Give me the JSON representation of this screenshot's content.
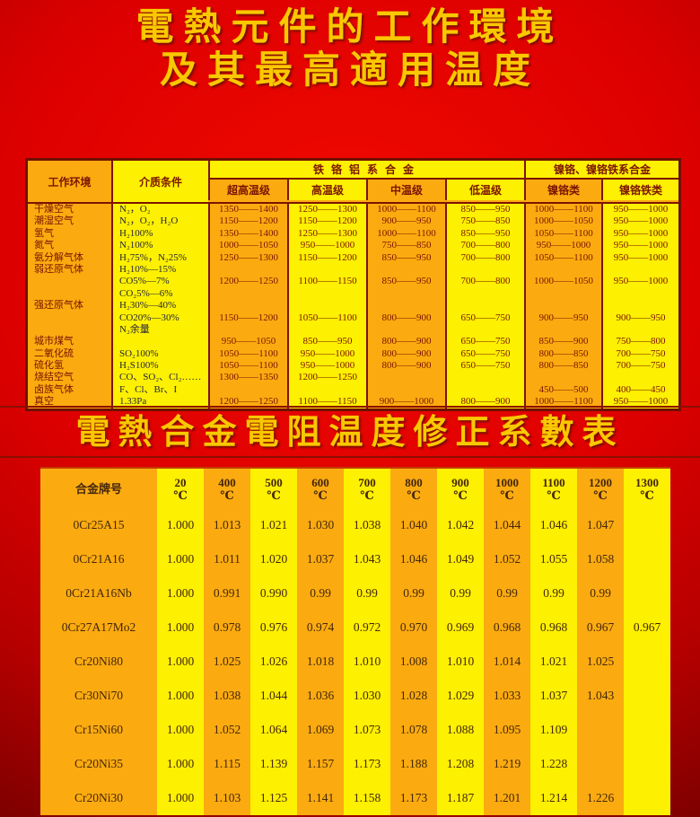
{
  "titles": {
    "main_line1": "電熱元件的工作環境",
    "main_line2": "及其最高適用温度",
    "second": "電熱合金電阻温度修正系數表"
  },
  "colors": {
    "page_red": "#dd0000",
    "cell_orange": "#fbab10",
    "cell_yellow": "#fdf000",
    "grid_line": "#7c1400",
    "title_gold": "#f9c800",
    "text_maroon": "#7b1400",
    "text_medium_dark": "#26263e"
  },
  "table1": {
    "header": {
      "col_env": "工作环境",
      "col_medium": "介质条件",
      "group_fecral": "铁铬铝系合金",
      "group_nicr": "镍铬、镍铬铁系合金",
      "sub_headers": [
        "超高温级",
        "高温级",
        "中温级",
        "低温级",
        "镍铬类",
        "镍铬铁类"
      ]
    },
    "lines": [
      {
        "env": "干燥空气",
        "medium": "N₂，O₂",
        "v": [
          "1350——1400",
          "1250——1300",
          "1000——1100",
          "850——950",
          "1000——1100",
          "950——1000"
        ]
      },
      {
        "env": "潮湿空气",
        "medium": "N₂，O₂，H₂O",
        "v": [
          "1150——1200",
          "1150——1200",
          "900——950",
          "750——850",
          "1000——1050",
          "950——1000"
        ]
      },
      {
        "env": "氢气",
        "medium": "H₂100%",
        "v": [
          "1350——1400",
          "1250——1300",
          "1000——1100",
          "850——950",
          "1050——1100",
          "950——1000"
        ]
      },
      {
        "env": "氮气",
        "medium": "N₂100%",
        "v": [
          "1000——1050",
          "950——1000",
          "750——850",
          "700——800",
          "950——1000",
          "950——1000"
        ]
      },
      {
        "env": "氨分解气体",
        "medium": "H₂75%，N₂25%",
        "v": [
          "1250——1300",
          "1150——1200",
          "850——950",
          "700——800",
          "1050——1100",
          "950——1000"
        ]
      },
      {
        "env": "弱还原气体",
        "medium": "H₂10%—15%",
        "v": [
          "",
          "",
          "",
          "",
          "",
          ""
        ]
      },
      {
        "env": "",
        "medium": "CO5%—7%",
        "v": [
          "1200——1250",
          "1100——1150",
          "850——950",
          "700——800",
          "1000——1050",
          "950——1000"
        ]
      },
      {
        "env": "",
        "medium": "CO₂5%—6%",
        "v": [
          "",
          "",
          "",
          "",
          "",
          ""
        ]
      },
      {
        "env": "强还原气体",
        "medium": "H₂30%—40%",
        "v": [
          "",
          "",
          "",
          "",
          "",
          ""
        ]
      },
      {
        "env": "",
        "medium": "CO20%—30%",
        "v": [
          "1150——1200",
          "1050——1100",
          "800——900",
          "650——750",
          "900——950",
          "900——950"
        ]
      },
      {
        "env": "",
        "medium": "N₂余量",
        "v": [
          "",
          "",
          "",
          "",
          "",
          ""
        ]
      },
      {
        "env": "城市煤气",
        "medium": "",
        "v": [
          "950——1050",
          "850——950",
          "800——900",
          "650——750",
          "850——900",
          "750——800"
        ]
      },
      {
        "env": "二氧化硫",
        "medium": "SO₂100%",
        "v": [
          "1050——1100",
          "950——1000",
          "800——900",
          "650——750",
          "800——850",
          "700——750"
        ]
      },
      {
        "env": "硫化氢",
        "medium": "H₂S100%",
        "v": [
          "1050——1100",
          "950——1000",
          "800——900",
          "650——750",
          "800——850",
          "700——750"
        ]
      },
      {
        "env": "烧结空气",
        "medium": "CO、SO₂、Cl₂……",
        "v": [
          "1300——1350",
          "1200——1250",
          "",
          "",
          "",
          ""
        ]
      },
      {
        "env": "卤族气体",
        "medium": "F、Cl、Br、I",
        "v": [
          "",
          "",
          "",
          "",
          "450——500",
          "400——450"
        ]
      },
      {
        "env": "真空",
        "medium": "1.33Pa",
        "v": [
          "1200——1250",
          "1100——1150",
          "900——1000",
          "800——900",
          "1000——1100",
          "950——1000"
        ]
      }
    ]
  },
  "table2": {
    "grade_header": "合金牌号",
    "temp_unit": "℃",
    "temps": [
      "20",
      "400",
      "500",
      "600",
      "700",
      "800",
      "900",
      "1000",
      "1100",
      "1200",
      "1300"
    ],
    "rows": [
      {
        "grade": "0Cr25A15",
        "values": [
          "1.000",
          "1.013",
          "1.021",
          "1.030",
          "1.038",
          "1.040",
          "1.042",
          "1.044",
          "1.046",
          "1.047",
          ""
        ]
      },
      {
        "grade": "0Cr21A16",
        "values": [
          "1.000",
          "1.011",
          "1.020",
          "1.037",
          "1.043",
          "1.046",
          "1.049",
          "1.052",
          "1.055",
          "1.058",
          ""
        ]
      },
      {
        "grade": "0Cr21A16Nb",
        "values": [
          "1.000",
          "0.991",
          "0.990",
          "0.99",
          "0.99",
          "0.99",
          "0.99",
          "0.99",
          "0.99",
          "0.99",
          ""
        ]
      },
      {
        "grade": "0Cr27A17Mo2",
        "values": [
          "1.000",
          "0.978",
          "0.976",
          "0.974",
          "0.972",
          "0.970",
          "0.969",
          "0.968",
          "0.968",
          "0.967",
          "0.967"
        ]
      },
      {
        "grade": "Cr20Ni80",
        "values": [
          "1.000",
          "1.025",
          "1.026",
          "1.018",
          "1.010",
          "1.008",
          "1.010",
          "1.014",
          "1.021",
          "1.025",
          ""
        ]
      },
      {
        "grade": "Cr30Ni70",
        "values": [
          "1.000",
          "1.038",
          "1.044",
          "1.036",
          "1.030",
          "1.028",
          "1.029",
          "1.033",
          "1.037",
          "1.043",
          ""
        ]
      },
      {
        "grade": "Cr15Ni60",
        "values": [
          "1.000",
          "1.052",
          "1.064",
          "1.069",
          "1.073",
          "1.078",
          "1.088",
          "1.095",
          "1.109",
          "",
          ""
        ]
      },
      {
        "grade": "Cr20Ni35",
        "values": [
          "1.000",
          "1.115",
          "1.139",
          "1.157",
          "1.173",
          "1.188",
          "1.208",
          "1.219",
          "1.228",
          "",
          ""
        ]
      },
      {
        "grade": "Cr20Ni30",
        "values": [
          "1.000",
          "1.103",
          "1.125",
          "1.141",
          "1.158",
          "1.173",
          "1.187",
          "1.201",
          "1.214",
          "1.226",
          ""
        ]
      }
    ]
  }
}
